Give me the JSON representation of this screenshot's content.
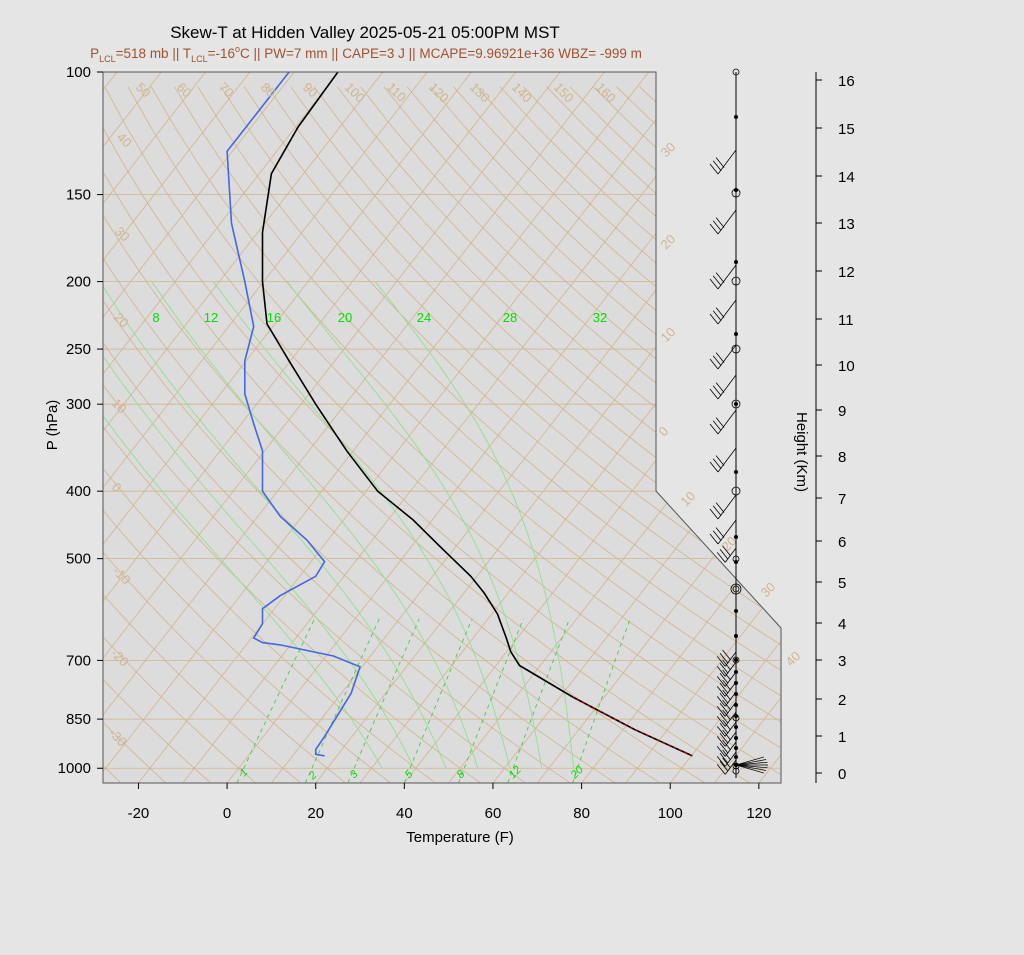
{
  "header": {
    "title": "Skew-T at Hidden Valley 2025-05-21 05:00PM MST",
    "stats": {
      "p_sym": "P",
      "p_sub": "LCL",
      "p_val": "=518 mb || ",
      "t_sym": "T",
      "t_sub": "LCL",
      "t_val": "=-16",
      "t_deg": "o",
      "t_unit": "C || PW=7 mm || CAPE=3 J || MCAPE=9.96921e+36 WBZ= -999 m"
    }
  },
  "chart_data": {
    "type": "line",
    "title": "Skew-T at Hidden Valley 2025-05-21 05:00PM MST",
    "xlabel": "Temperature (F)",
    "ylabel": "P (hPa)",
    "y2label": "Height (Km)",
    "xlim": [
      -28,
      125
    ],
    "ylim": [
      1050,
      100
    ],
    "y_scale": "log",
    "x_ticks": [
      "-20",
      "0",
      "20",
      "40",
      "60",
      "80",
      "100",
      "120"
    ],
    "y_ticks": [
      "100",
      "150",
      "200",
      "250",
      "300",
      "400",
      "500",
      "700",
      "850",
      "1000"
    ],
    "height_ticks": [
      "16",
      "15",
      "14",
      "13",
      "12",
      "11",
      "10",
      "9",
      "8",
      "7",
      "6",
      "5",
      "4",
      "3",
      "2",
      "1",
      "0"
    ],
    "isotherm_labels": [
      "50",
      "60",
      "70",
      "80",
      "90",
      "100",
      "110",
      "120",
      "130",
      "140",
      "150",
      "160",
      "40",
      "30",
      "20",
      "10",
      "0",
      "-10",
      "-20",
      "-30"
    ],
    "skewed_temp_labels": [
      "30",
      "20",
      "10",
      "0",
      "10",
      "20",
      "30",
      "40"
    ],
    "mixing_ratio_labels": [
      "1",
      "2",
      "3",
      "5",
      "8",
      "12",
      "20"
    ],
    "wetbulb_labels": [
      "8",
      "12",
      "16",
      "20",
      "24",
      "28",
      "32"
    ],
    "series": [
      {
        "name": "Temperature",
        "color": "#000000",
        "points": [
          [
            105,
            960
          ],
          [
            92,
            880
          ],
          [
            78,
            790
          ],
          [
            66,
            712
          ],
          [
            64,
            680
          ],
          [
            63,
            650
          ],
          [
            61,
            600
          ],
          [
            58,
            560
          ],
          [
            55,
            530
          ],
          [
            48,
            480
          ],
          [
            42,
            440
          ],
          [
            34,
            400
          ],
          [
            27,
            350
          ],
          [
            20,
            300
          ],
          [
            14,
            260
          ],
          [
            9,
            230
          ],
          [
            8,
            200
          ],
          [
            8,
            170
          ],
          [
            10,
            140
          ],
          [
            16,
            120
          ],
          [
            25,
            100
          ]
        ]
      },
      {
        "name": "Dewpoint",
        "color": "#4169e1",
        "points": [
          [
            22,
            960
          ],
          [
            20,
            955
          ],
          [
            20,
            940
          ],
          [
            22,
            900
          ],
          [
            28,
            780
          ],
          [
            30,
            715
          ],
          [
            24,
            690
          ],
          [
            12,
            665
          ],
          [
            8,
            660
          ],
          [
            6,
            650
          ],
          [
            8,
            620
          ],
          [
            8,
            590
          ],
          [
            12,
            565
          ],
          [
            20,
            530
          ],
          [
            22,
            505
          ],
          [
            18,
            470
          ],
          [
            12,
            435
          ],
          [
            8,
            400
          ],
          [
            8,
            350
          ],
          [
            6,
            320
          ],
          [
            4,
            290
          ],
          [
            4,
            260
          ],
          [
            6,
            232
          ],
          [
            4,
            200
          ],
          [
            1,
            165
          ],
          [
            0,
            130
          ],
          [
            14,
            100
          ]
        ]
      }
    ]
  }
}
